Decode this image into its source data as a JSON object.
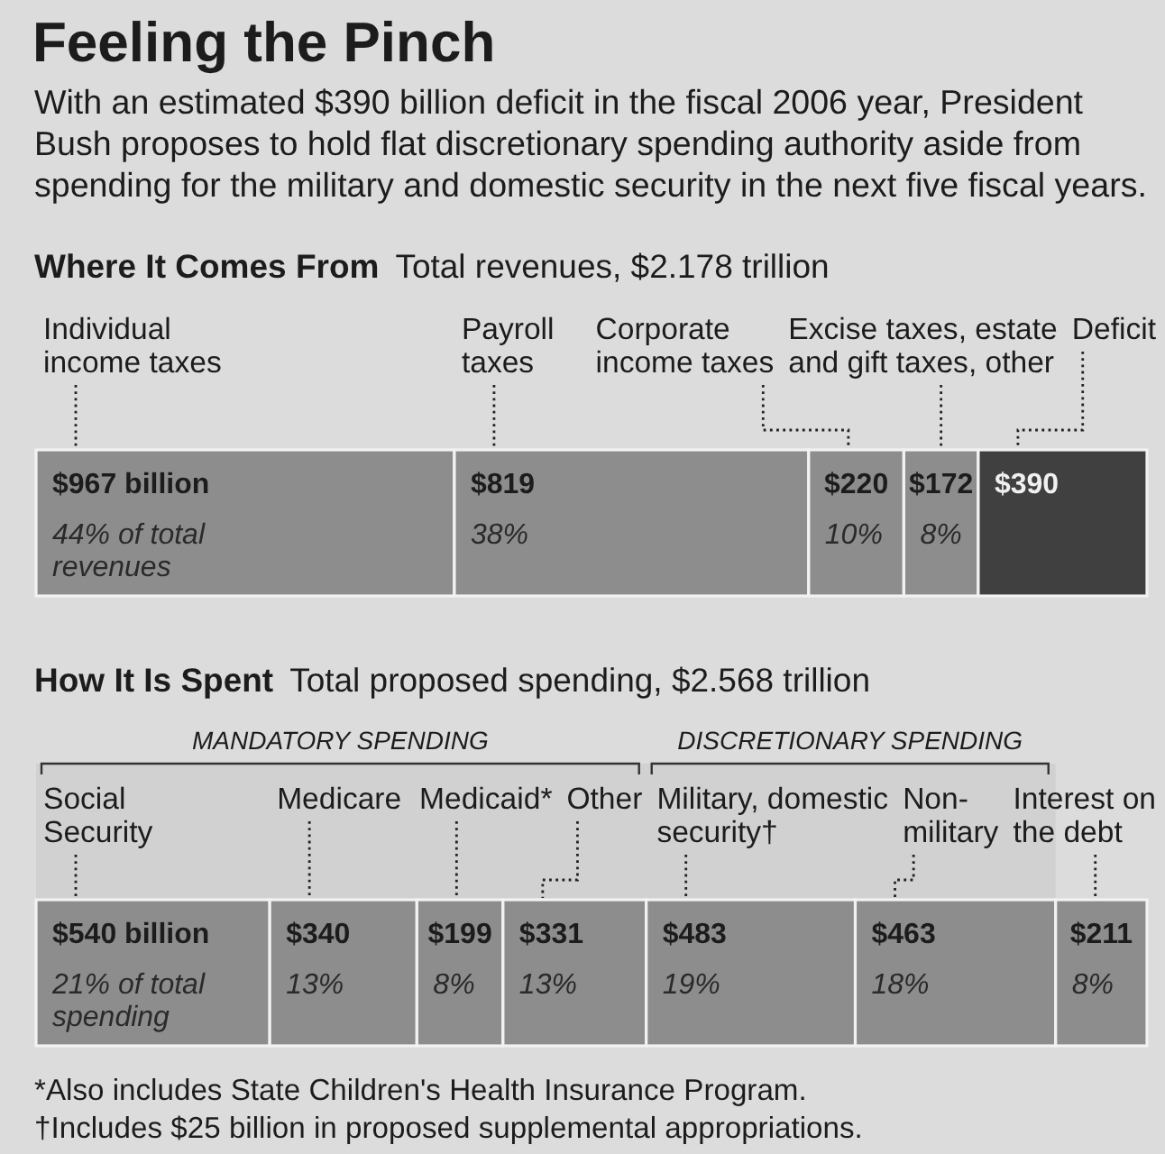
{
  "chart_data": [
    {
      "type": "other",
      "title": "Feeling the Pinch",
      "subtitle": "With an estimated $390 billion deficit in the fiscal 2006 year, President Bush proposes to hold flat discretionary spending authority aside from spending for the military and domestic security in the next five fiscal years."
    },
    {
      "type": "bar",
      "orientation": "horizontal",
      "stacked": true,
      "tick_labels": false,
      "title": "Where It Comes From",
      "subtitle": "Total revenues, $2.178 trillion",
      "categories": [
        null
      ],
      "series": [
        {
          "name": "Individual income taxes",
          "color": "#8d8d8d",
          "values": [
            967
          ],
          "value_labels": [
            "$967 billion"
          ]
        },
        {
          "name": "Payroll taxes",
          "color": "#8d8d8d",
          "values": [
            819
          ],
          "value_labels": [
            "$819"
          ]
        },
        {
          "name": "Corporate income taxes",
          "color": "#8d8d8d",
          "values": [
            220
          ],
          "value_labels": [
            "$220"
          ]
        },
        {
          "name": "Excise taxes, estate and gift taxes, other",
          "color": "#8d8d8d",
          "values": [
            172
          ],
          "value_labels": [
            "$172"
          ]
        },
        {
          "name": "Deficit",
          "color": "#404040",
          "values": [
            390
          ],
          "value_labels": [
            "$390"
          ]
        }
      ],
      "annotations": [
        {
          "text": "44% of total revenues",
          "x": 0
        },
        {
          "text": "38%",
          "x": 967
        },
        {
          "text": "10%",
          "x": 1786
        },
        {
          "text": "8%",
          "x": 2006
        }
      ]
    },
    {
      "type": "bar",
      "orientation": "horizontal",
      "stacked": true,
      "tick_labels": false,
      "title": "How It Is Spent",
      "subtitle": "Total proposed spending, $2.568 trillion",
      "categories": [
        null
      ],
      "series": [
        {
          "name": "Social Security",
          "color": "#8d8d8d",
          "values": [
            540
          ],
          "value_labels": [
            "$540 billion"
          ]
        },
        {
          "name": "Medicare",
          "color": "#8d8d8d",
          "values": [
            340
          ],
          "value_labels": [
            "$340"
          ]
        },
        {
          "name": "Medicaid*",
          "color": "#8d8d8d",
          "values": [
            199
          ],
          "value_labels": [
            "$199"
          ]
        },
        {
          "name": "Other",
          "color": "#8d8d8d",
          "values": [
            331
          ],
          "value_labels": [
            "$331"
          ]
        },
        {
          "name": "Military, domestic security†",
          "color": "#8d8d8d",
          "values": [
            483
          ],
          "value_labels": [
            "$483"
          ]
        },
        {
          "name": "Non-military",
          "color": "#8d8d8d",
          "values": [
            463
          ],
          "value_labels": [
            "$463"
          ]
        },
        {
          "name": "Interest on the debt",
          "color": "#8d8d8d",
          "values": [
            211
          ],
          "value_labels": [
            "$211"
          ]
        }
      ],
      "bands": [
        {
          "axis": "x",
          "from": 0,
          "to": 1410,
          "label": "MANDATORY SPENDING"
        },
        {
          "axis": "x",
          "from": 1410,
          "to": 2356,
          "label": "DISCRETIONARY SPENDING"
        }
      ],
      "annotations": [
        {
          "text": "21% of total spending",
          "x": 0
        },
        {
          "text": "13%",
          "x": 540
        },
        {
          "text": "8%",
          "x": 880
        },
        {
          "text": "13%",
          "x": 1079
        },
        {
          "text": "19%",
          "x": 1410
        },
        {
          "text": "18%",
          "x": 1893
        },
        {
          "text": "8%",
          "x": 2356
        },
        "*Also includes State Children's Health Insurance Program.",
        "†Includes $25 billion in proposed supplemental appropriations."
      ]
    }
  ]
}
